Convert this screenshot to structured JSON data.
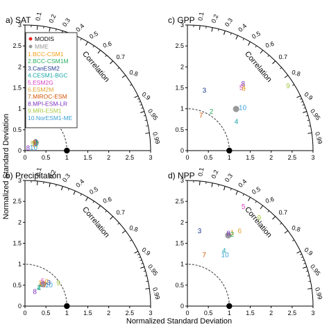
{
  "figure": {
    "axis_titles": {
      "y": "Normalized Standard Deviation",
      "x": "Normalized Standard Deviation"
    },
    "correlation_label": "Correlation",
    "radial_ticks": [
      "0",
      "0.5",
      "1",
      "1.5",
      "2",
      "2.5",
      "3"
    ],
    "corr_ticks": [
      0.1,
      0.2,
      0.3,
      0.4,
      0.5,
      0.6,
      0.7,
      0.8,
      0.9,
      0.95,
      0.99
    ],
    "corr_tick_labels": [
      "0.1",
      "0.2",
      "0.3",
      "0.4",
      "0.5",
      "0.6",
      "0.7",
      "0.8",
      "0.9",
      "0.95",
      "0.99"
    ],
    "colors": {
      "obs": "#e8261f",
      "mme": "#999999",
      "models": [
        "#f39c12",
        "#27ae60",
        "#1f3a93",
        "#16a5a5",
        "#d93fbf",
        "#e0a030",
        "#d35400",
        "#7b2fbf",
        "#a5c842",
        "#3aa0d8"
      ]
    },
    "legend": {
      "obs": "MODIS",
      "mme": "MME",
      "models": [
        "1.BCC-CSM1",
        "2.BCC-CSM1M",
        "3.CanESM2",
        "4.CESM1-BGC",
        "5.ESM2G",
        "6.ESM2M",
        "7.MIROC-ESM",
        "8.MPI-ESM-LR",
        "9.MRI-ESM1",
        "10.NorESM1-ME"
      ]
    }
  },
  "chart_data": [
    {
      "type": "taylor",
      "title": "a) SAT",
      "reference": {
        "std": 1.0,
        "corr": 1.0
      },
      "mme": {
        "std": 0.32,
        "corr": 0.8
      },
      "models": [
        {
          "label": "1",
          "std": 0.3,
          "corr": 0.86
        },
        {
          "label": "2",
          "std": 0.32,
          "corr": 0.84
        },
        {
          "label": "3",
          "std": 0.33,
          "corr": 0.76
        },
        {
          "label": "4",
          "std": 0.32,
          "corr": 0.82
        },
        {
          "label": "5",
          "std": 0.3,
          "corr": 0.78
        },
        {
          "label": "6",
          "std": 0.31,
          "corr": 0.74
        },
        {
          "label": "7",
          "std": 0.26,
          "corr": 0.81
        },
        {
          "label": "8",
          "std": 0.1,
          "corr": 0.72
        },
        {
          "label": "9",
          "std": 0.25,
          "corr": 0.72
        },
        {
          "label": "10",
          "std": 0.22,
          "corr": 0.94
        }
      ]
    },
    {
      "type": "taylor",
      "title": "c) GPP",
      "reference": {
        "std": 1.0,
        "corr": 1.0
      },
      "mme": {
        "std": 1.53,
        "corr": 0.76
      },
      "models": [
        {
          "label": "1",
          "std": 2.05,
          "corr": 0.66
        },
        {
          "label": "2",
          "std": 1.1,
          "corr": 0.52
        },
        {
          "label": "3",
          "std": 1.5,
          "corr": 0.27
        },
        {
          "label": "4",
          "std": 1.36,
          "corr": 0.86
        },
        {
          "label": "5",
          "std": 1.98,
          "corr": 0.65
        },
        {
          "label": "6",
          "std": 2.0,
          "corr": 0.67
        },
        {
          "label": "7",
          "std": 0.91,
          "corr": 0.36
        },
        {
          "label": "8",
          "std": 2.08,
          "corr": 0.64
        },
        {
          "label": "9",
          "std": 2.86,
          "corr": 0.84
        },
        {
          "label": "10",
          "std": 1.67,
          "corr": 0.79
        }
      ]
    },
    {
      "type": "taylor",
      "title": "b) Precipitation",
      "reference": {
        "std": 1.0,
        "corr": 1.0
      },
      "mme": {
        "std": 0.67,
        "corr": 0.63
      },
      "models": [
        {
          "label": "1",
          "std": 0.66,
          "corr": 0.55
        },
        {
          "label": "2",
          "std": 0.56,
          "corr": 0.6
        },
        {
          "label": "3",
          "std": 0.8,
          "corr": 0.71
        },
        {
          "label": "4",
          "std": 0.55,
          "corr": 0.6
        },
        {
          "label": "5",
          "std": 0.73,
          "corr": 0.58
        },
        {
          "label": "6",
          "std": 0.78,
          "corr": 0.66
        },
        {
          "label": "7",
          "std": 0.7,
          "corr": 0.69
        },
        {
          "label": "8",
          "std": 0.42,
          "corr": 0.56
        },
        {
          "label": "9",
          "std": 0.97,
          "corr": 0.82
        },
        {
          "label": "10",
          "std": 0.76,
          "corr": 0.75
        }
      ]
    },
    {
      "type": "taylor",
      "title": "d) NPP",
      "reference": {
        "std": 1.0,
        "corr": 1.0
      },
      "mme": {
        "std": 1.95,
        "corr": 0.5
      },
      "models": [
        {
          "label": "1",
          "std": 2.06,
          "corr": 0.52
        },
        {
          "label": "2",
          "std": 2.02,
          "corr": 0.53
        },
        {
          "label": "3",
          "std": 1.82,
          "corr": 0.16
        },
        {
          "label": "4",
          "std": 1.59,
          "corr": 0.55
        },
        {
          "label": "5",
          "std": 2.73,
          "corr": 0.49
        },
        {
          "label": "6",
          "std": 2.19,
          "corr": 0.57
        },
        {
          "label": "7",
          "std": 1.29,
          "corr": 0.31
        },
        {
          "label": "8",
          "std": 2.0,
          "corr": 0.49
        },
        {
          "label": "9",
          "std": 2.72,
          "corr": 0.63
        },
        {
          "label": "10",
          "std": 1.52,
          "corr": 0.59
        }
      ]
    }
  ]
}
